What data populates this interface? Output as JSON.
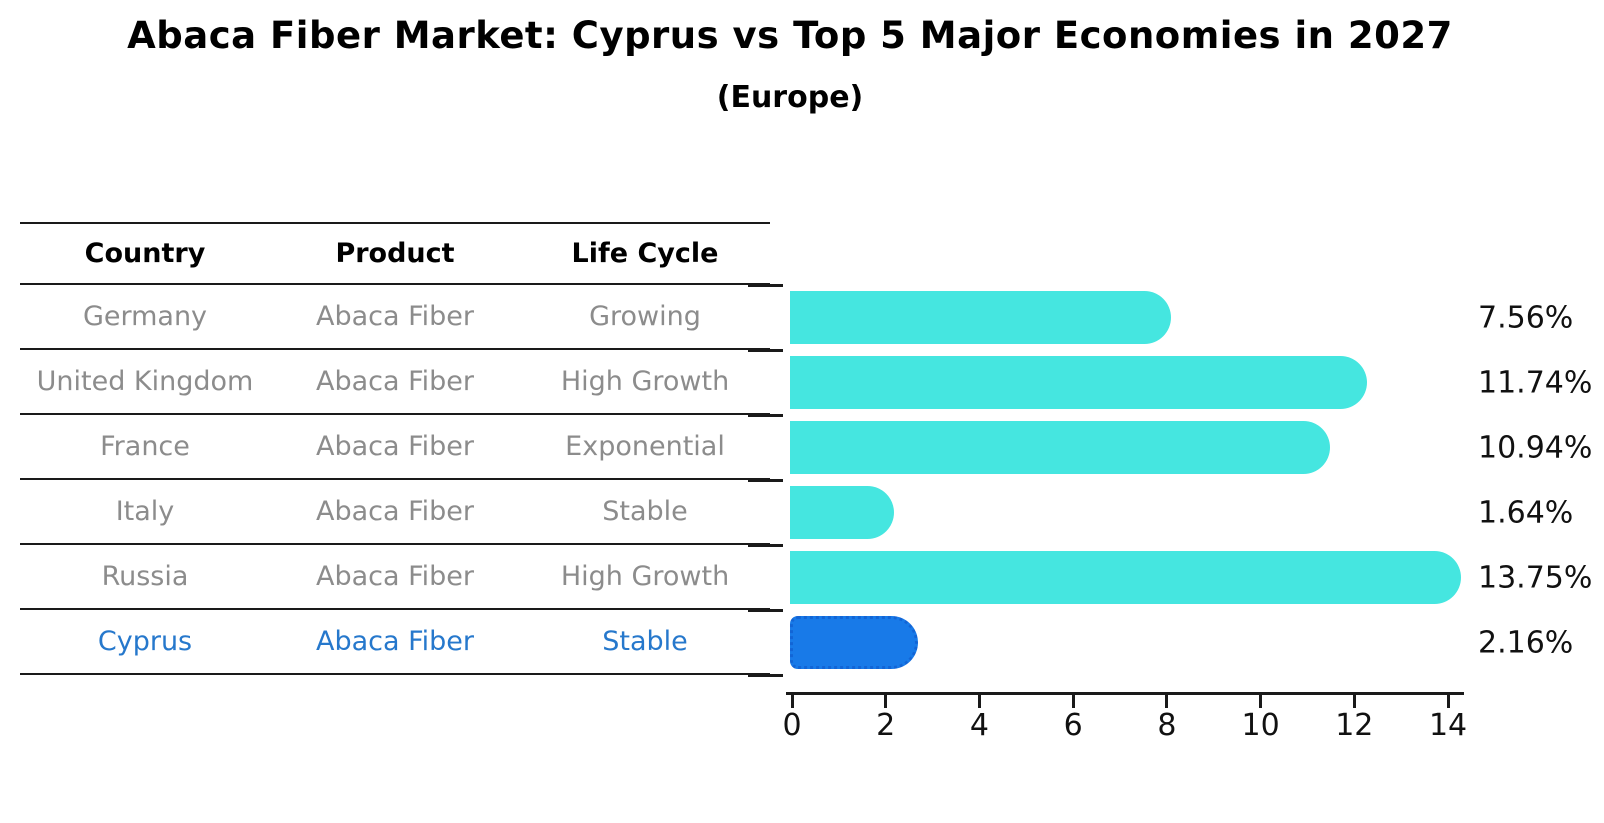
{
  "title": "Abaca Fiber Market: Cyprus vs Top 5 Major Economies in 2027",
  "subtitle": "(Europe)",
  "table": {
    "headers": [
      "Country",
      "Product",
      "Life Cycle"
    ],
    "rows": [
      {
        "country": "Germany",
        "product": "Abaca Fiber",
        "life_cycle": "Growing",
        "highlight": false
      },
      {
        "country": "United Kingdom",
        "product": "Abaca Fiber",
        "life_cycle": "High Growth",
        "highlight": false
      },
      {
        "country": "France",
        "product": "Abaca Fiber",
        "life_cycle": "Exponential",
        "highlight": false
      },
      {
        "country": "Italy",
        "product": "Abaca Fiber",
        "life_cycle": "Stable",
        "highlight": false
      },
      {
        "country": "Russia",
        "product": "Abaca Fiber",
        "life_cycle": "High Growth",
        "highlight": false
      },
      {
        "country": "Cyprus",
        "product": "Abaca Fiber",
        "life_cycle": "Stable",
        "highlight": true
      }
    ]
  },
  "chart_data": {
    "type": "bar",
    "orientation": "horizontal",
    "title": "Abaca Fiber Market: Cyprus vs Top 5 Major Economies in 2027",
    "subtitle": "(Europe)",
    "categories": [
      "Germany",
      "United Kingdom",
      "France",
      "Italy",
      "Russia",
      "Cyprus"
    ],
    "values": [
      7.56,
      11.74,
      10.94,
      1.64,
      13.75,
      2.16
    ],
    "value_labels": [
      "7.56%",
      "11.74%",
      "10.94%",
      "1.64%",
      "13.75%",
      "2.16%"
    ],
    "highlight_index": 5,
    "x_ticks": [
      0,
      2,
      4,
      6,
      8,
      10,
      12,
      14
    ],
    "xlim": [
      0,
      14.3
    ],
    "grid": false,
    "legend": null
  },
  "colors": {
    "bar": "#45E6E0",
    "highlight_bar": "#187AE8",
    "highlight_border": "#1265D6",
    "highlight_text": "#2678CC",
    "row_text": "#8C8C8C",
    "header_text": "#000000",
    "line": "#1A1A1A",
    "value_text": "#111111"
  }
}
